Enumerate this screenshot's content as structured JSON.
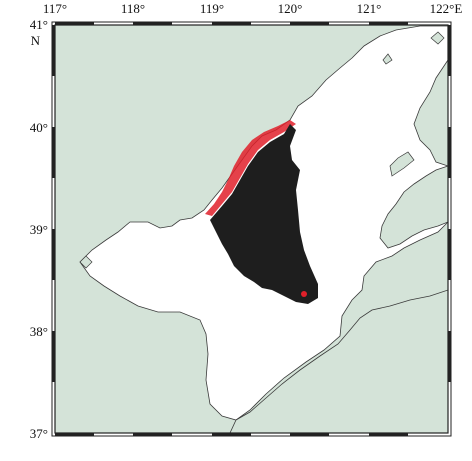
{
  "map": {
    "lon_ticks": [
      "117°",
      "118°",
      "119°",
      "120°",
      "121°",
      "122°E"
    ],
    "lat_ticks": [
      "41°",
      "40°",
      "39°",
      "38°",
      "37°"
    ],
    "north_label": "N",
    "colors": {
      "land": "#d4e3d8",
      "sea": "#ffffff",
      "coastline": "#3a3a3a",
      "plume": "#1e1e1e",
      "edge_highlight": "#e0202a",
      "frame": "#222222"
    },
    "extent": {
      "lon": [
        117,
        122
      ],
      "lat": [
        37,
        41
      ]
    }
  }
}
